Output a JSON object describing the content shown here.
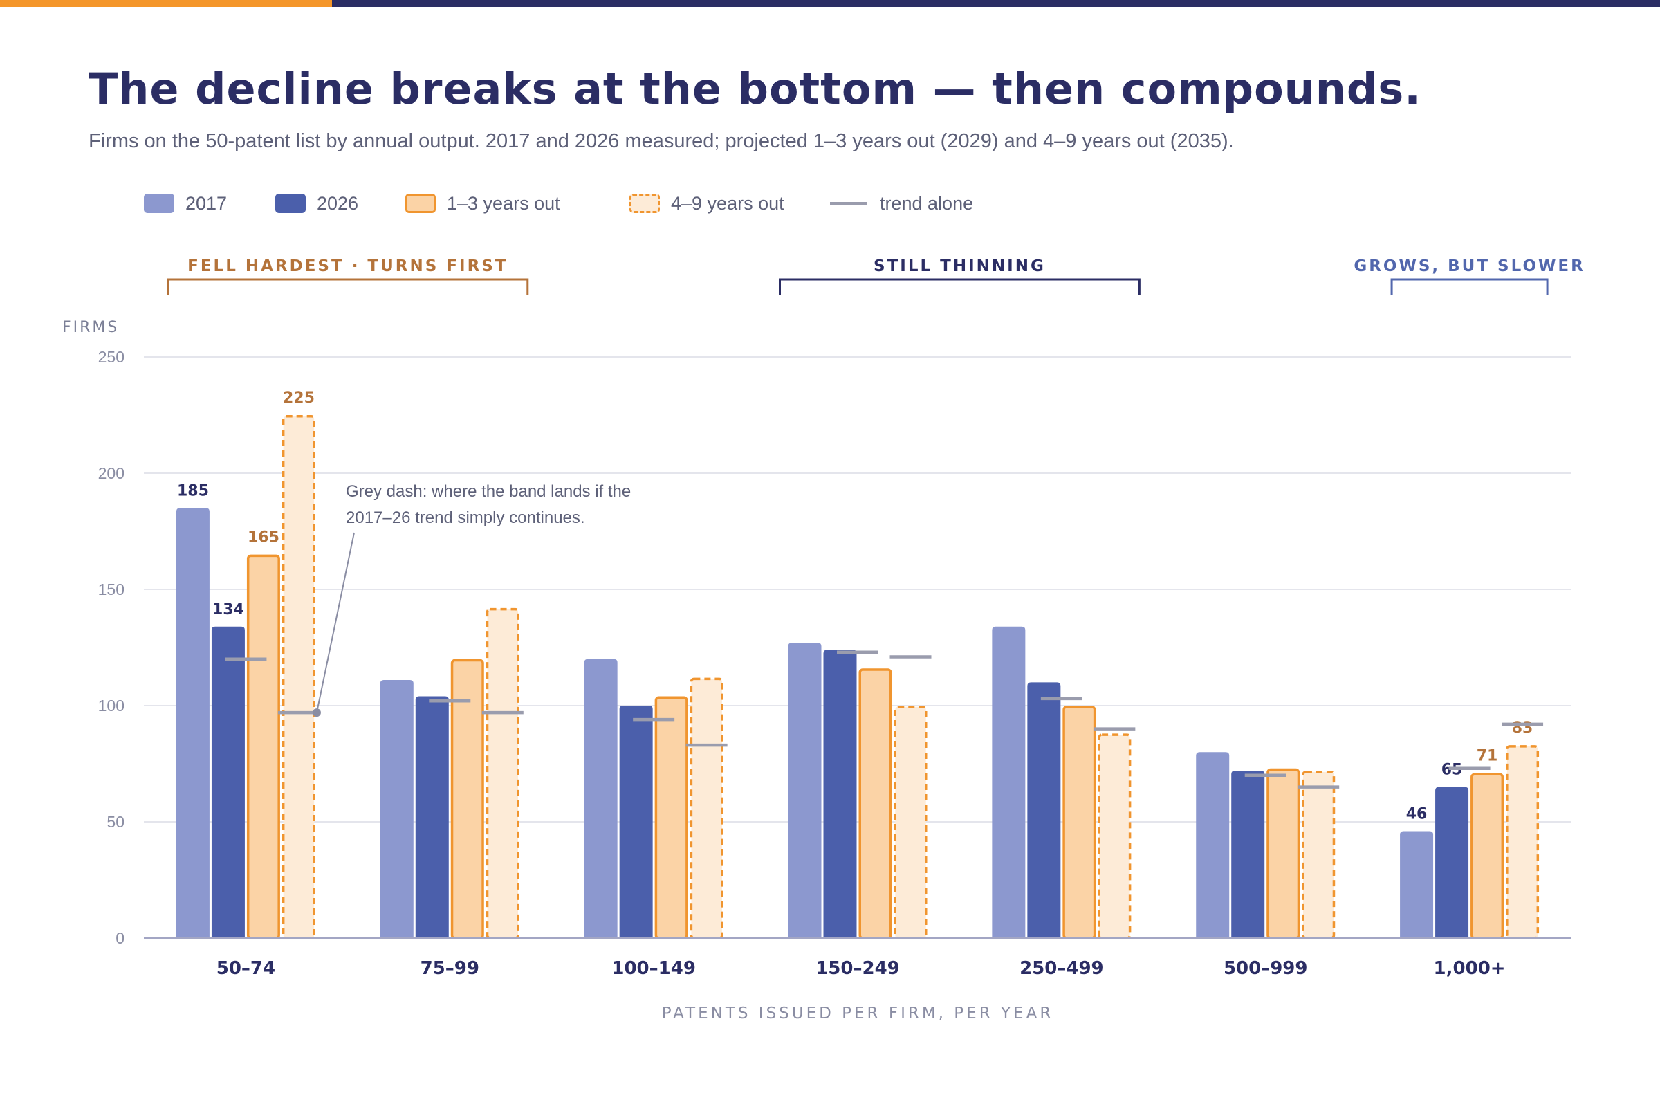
{
  "header": {
    "title": "The decline breaks at the bottom — then compounds.",
    "subtitle": "Firms on the 50-patent list by annual output. 2017 and 2026 measured; projected 1–3 years out (2029) and 4–9 years out (2035)."
  },
  "legend": {
    "items": [
      {
        "label": "2017"
      },
      {
        "label": "2026"
      },
      {
        "label": "1–3 years out"
      },
      {
        "label": "4–9 years out"
      },
      {
        "label": "trend alone"
      }
    ]
  },
  "colors": {
    "title": "#2b2d64",
    "accent": "#f4962a",
    "y2017": "#8c98cf",
    "y2026": "#4b5fab",
    "near_fill": "#fbd3a6",
    "near_stroke": "#f0952f",
    "far_fill": "#fdebd7",
    "far_stroke": "#f0952f",
    "trend": "#9a9cad",
    "group_orange": "#b4733a",
    "group_navy": "#2b2d64",
    "group_blue": "#5267ad"
  },
  "chart_data": {
    "type": "bar",
    "title": "The decline breaks at the bottom — then compounds.",
    "subtitle": "Firms on the 50-patent list by annual output. 2017 and 2026 measured; projected 1–3 years out (2029) and 4–9 years out (2035).",
    "ylabel": "FIRMS",
    "xlabel": "PATENTS ISSUED PER FIRM, PER YEAR",
    "ylim": [
      0,
      250
    ],
    "yticks": [
      0,
      50,
      100,
      150,
      200,
      250
    ],
    "grid": true,
    "legend_position": "top-left",
    "categories": [
      "50–74",
      "75–99",
      "100–149",
      "150–249",
      "250–499",
      "500–999",
      "1,000+"
    ],
    "series": [
      {
        "name": "2017",
        "values": [
          185,
          111,
          120,
          127,
          134,
          80,
          46
        ]
      },
      {
        "name": "2026",
        "values": [
          134,
          104,
          100,
          124,
          110,
          72,
          65
        ]
      },
      {
        "name": "1–3 years out",
        "values": [
          165,
          120,
          104,
          116,
          100,
          73,
          71
        ]
      },
      {
        "name": "4–9 years out",
        "values": [
          225,
          142,
          112,
          100,
          88,
          72,
          83
        ]
      }
    ],
    "trend_alone": {
      "name": "trend alone",
      "near": [
        120,
        102,
        94,
        123,
        103,
        70,
        73
      ],
      "far": [
        97,
        97,
        83,
        121,
        90,
        65,
        92
      ]
    },
    "data_labels": [
      {
        "category": "50–74",
        "series": "2017",
        "text": "185"
      },
      {
        "category": "50–74",
        "series": "2026",
        "text": "134"
      },
      {
        "category": "50–74",
        "series": "1–3 years out",
        "text": "165"
      },
      {
        "category": "50–74",
        "series": "4–9 years out",
        "text": "225"
      },
      {
        "category": "1,000+",
        "series": "2017",
        "text": "46"
      },
      {
        "category": "1,000+",
        "series": "2026",
        "text": "65"
      },
      {
        "category": "1,000+",
        "series": "1–3 years out",
        "text": "71"
      },
      {
        "category": "1,000+",
        "series": "4–9 years out",
        "text": "83"
      }
    ],
    "annotation": {
      "lines": [
        "Grey dash: where the band lands if the",
        "2017–26 trend simply continues."
      ]
    },
    "group_brackets": [
      {
        "label": "FELL HARDEST · TURNS FIRST",
        "color": "group_orange"
      },
      {
        "label": "STILL THINNING",
        "color": "group_navy"
      },
      {
        "label": "GROWS, BUT SLOWER",
        "color": "group_blue"
      }
    ]
  }
}
